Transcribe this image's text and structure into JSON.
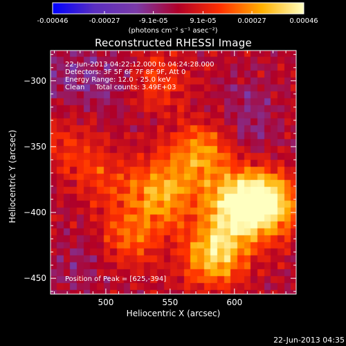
{
  "colorbar": {
    "tick_labels": [
      "-0.00046",
      "-0.00027",
      "-9.1e-05",
      "9.1e-05",
      "0.00027",
      "0.00046"
    ],
    "tick_values": [
      -0.00046,
      -0.00027,
      -9.1e-05,
      9.1e-05,
      0.00027,
      0.00046
    ],
    "range": [
      -0.00046,
      0.00046
    ],
    "unit_label": "(photons cm⁻² s⁻¹ asec⁻²)",
    "colors": [
      "#0000ff",
      "#5a2ec0",
      "#7a3aa8",
      "#b00028",
      "#ff3000",
      "#ffb000",
      "#ffffc0"
    ]
  },
  "chart_data": {
    "type": "heatmap",
    "title": "Reconstructed RHESSI Image",
    "xlabel": "Heliocentric X (arcsec)",
    "ylabel": "Heliocentric Y (arcsec)",
    "xlim": [
      457,
      648
    ],
    "ylim": [
      -462,
      -277
    ],
    "x_ticks": [
      500,
      550,
      600
    ],
    "y_ticks": [
      -300,
      -350,
      -400,
      -450
    ],
    "value_range": [
      -0.00046,
      0.00046
    ],
    "peak_position": [
      625,
      -394
    ],
    "sources": [
      {
        "x": 625,
        "y": -394,
        "value": 0.00046
      },
      {
        "x": 600,
        "y": -395,
        "value": 0.00036
      },
      {
        "x": 585,
        "y": -432,
        "value": 0.00038
      },
      {
        "x": 545,
        "y": -385,
        "value": 0.0003
      },
      {
        "x": 575,
        "y": -355,
        "value": 0.00027
      },
      {
        "x": 520,
        "y": -418,
        "value": 0.0002
      },
      {
        "x": 540,
        "y": -300,
        "value": 0.00015
      },
      {
        "x": 500,
        "y": -375,
        "value": 0.00014
      },
      {
        "x": 470,
        "y": -350,
        "value": 0.00012
      },
      {
        "x": 505,
        "y": -300,
        "value": -8e-05
      },
      {
        "x": 610,
        "y": -330,
        "value": -0.0001
      },
      {
        "x": 480,
        "y": -440,
        "value": -6e-05
      },
      {
        "x": 470,
        "y": -300,
        "value": -9e-05
      }
    ]
  },
  "info": {
    "time_range": "22-Jun-2013 04:22:12.000 to 04:24:28.000",
    "detectors": "Detectors: 3F 5F 6F 7F 8F 9F, Att 0",
    "energy_range": "Energy Range: 12.0 - 25.0 keV",
    "clean_counts": "Clean     Total counts: 3.49E+03",
    "peak_position": "Position of Peak = [625,-394]"
  },
  "datestamp": "22-Jun-2013 04:35"
}
